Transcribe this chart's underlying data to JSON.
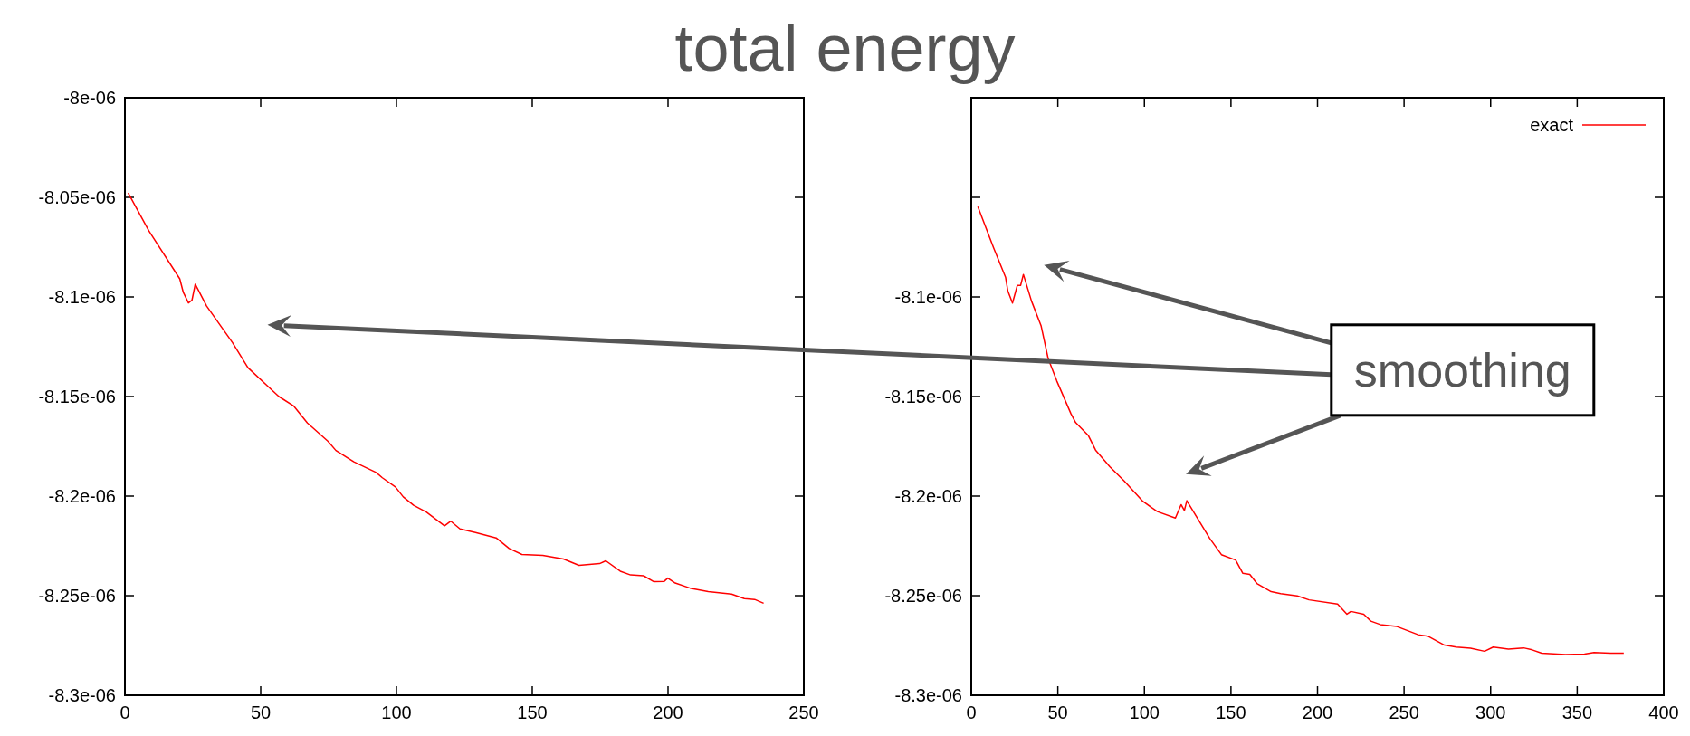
{
  "chart_data": [
    {
      "type": "line",
      "title": "total energy",
      "xlim": [
        0,
        250
      ],
      "xticks": [
        0,
        50,
        100,
        150,
        200,
        250
      ],
      "ylim": [
        -8.3e-06,
        -8e-06
      ],
      "yticks": [
        {
          "value": -8.3e-06,
          "label": "-8.3e-06"
        },
        {
          "value": -8.25e-06,
          "label": "-8.25e-06"
        },
        {
          "value": -8.2e-06,
          "label": "-8.2e-06"
        },
        {
          "value": -8.15e-06,
          "label": "-8.15e-06"
        },
        {
          "value": -8.1e-06,
          "label": "-8.1e-06"
        },
        {
          "value": -8.05e-06,
          "label": "-8.05e-06"
        },
        {
          "value": -8e-06,
          "label": "-8e-06"
        }
      ],
      "grid": false,
      "legend": false,
      "series": [
        {
          "color": "#ff0000",
          "x": [
            1.2,
            8.8,
            20.2,
            21.5,
            23.4,
            24.7,
            25.9,
            30.1,
            39.6,
            45.3,
            53.9,
            56.7,
            62.1,
            67.2,
            74.8,
            77.7,
            84.3,
            92.5,
            94.8,
            99.6,
            102.5,
            106.3,
            111,
            117.7,
            120,
            123.4,
            129.1,
            136.7,
            141.5,
            146.2,
            153.9,
            161.5,
            167.2,
            174.8,
            177.1,
            182.4,
            186.2,
            191,
            194.8,
            198.6,
            199.9,
            202.4,
            208.1,
            214.8,
            223.4,
            228.1,
            231.9,
            235.2
          ],
          "values": [
            -8.0478e-06,
            -8.0668e-06,
            -8.0909e-06,
            -8.0977e-06,
            -8.103e-06,
            -8.1016e-06,
            -8.0936e-06,
            -8.1046e-06,
            -8.1229e-06,
            -8.1355e-06,
            -8.1465e-06,
            -8.15e-06,
            -8.1547e-06,
            -8.1633e-06,
            -8.1725e-06,
            -8.1771e-06,
            -8.1828e-06,
            -8.1881e-06,
            -8.1908e-06,
            -8.1954e-06,
            -8.2004e-06,
            -8.2046e-06,
            -8.208e-06,
            -8.2149e-06,
            -8.2126e-06,
            -8.2165e-06,
            -8.2183e-06,
            -8.221e-06,
            -8.2263e-06,
            -8.2293e-06,
            -8.2298e-06,
            -8.2316e-06,
            -8.2348e-06,
            -8.2339e-06,
            -8.2325e-06,
            -8.2377e-06,
            -8.2396e-06,
            -8.24e-06,
            -8.243e-06,
            -8.2428e-06,
            -8.2412e-06,
            -8.2435e-06,
            -8.2462e-06,
            -8.248e-06,
            -8.2492e-06,
            -8.2515e-06,
            -8.2519e-06,
            -8.2538e-06
          ]
        }
      ]
    },
    {
      "type": "line",
      "annotations": [
        "smoothing"
      ],
      "xlim": [
        0,
        400
      ],
      "xticks": [
        0,
        50,
        100,
        150,
        200,
        250,
        300,
        350,
        400
      ],
      "ylim": [
        -8.3e-06,
        -8e-06
      ],
      "yticks": [
        {
          "value": -8.3e-06,
          "label": "-8.3e-06"
        },
        {
          "value": -8.25e-06,
          "label": "-8.25e-06"
        },
        {
          "value": -8.2e-06,
          "label": "-8.2e-06"
        },
        {
          "value": -8.15e-06,
          "label": "-8.15e-06"
        },
        {
          "value": -8.1e-06,
          "label": "-8.1e-06"
        },
        {
          "value": -8.05e-06,
          "label": null
        },
        {
          "value": -8e-06,
          "label": null
        }
      ],
      "grid": false,
      "legend": "top right",
      "series": [
        {
          "name": "exact",
          "color": "#ff0000",
          "x": [
            3.8,
            12.9,
            19.8,
            21.1,
            23.8,
            26.6,
            28.5,
            30.1,
            34.8,
            40.3,
            44.4,
            49.4,
            57.6,
            60.3,
            67.7,
            71.8,
            80,
            88.3,
            99.2,
            107.5,
            117.9,
            121.2,
            123.1,
            124.5,
            137.7,
            144.5,
            152.7,
            156.8,
            160.9,
            165,
            173.2,
            178.7,
            188.3,
            195.1,
            211.6,
            217,
            219.3,
            226.7,
            230.8,
            236.3,
            245.9,
            258.2,
            263.7,
            273.3,
            280.1,
            288.4,
            296.5,
            301.5,
            310.3,
            319,
            324,
            329.5,
            343.2,
            354.2,
            359.7,
            369.3,
            376.9
          ],
          "values": [
            -8.0547e-06,
            -8.0753e-06,
            -8.0901e-06,
            -8.0969e-06,
            -8.1031e-06,
            -8.0942e-06,
            -8.0942e-06,
            -8.0887e-06,
            -8.1021e-06,
            -8.1144e-06,
            -8.1309e-06,
            -8.1422e-06,
            -8.1587e-06,
            -8.1631e-06,
            -8.1697e-06,
            -8.1769e-06,
            -8.1852e-06,
            -8.1924e-06,
            -8.2027e-06,
            -8.2078e-06,
            -8.211e-06,
            -8.2043e-06,
            -8.2072e-06,
            -8.2023e-06,
            -8.2212e-06,
            -8.2294e-06,
            -8.2321e-06,
            -8.2387e-06,
            -8.2393e-06,
            -8.2439e-06,
            -8.248e-06,
            -8.249e-06,
            -8.2501e-06,
            -8.2521e-06,
            -8.2542e-06,
            -8.2593e-06,
            -8.2579e-06,
            -8.2593e-06,
            -8.2628e-06,
            -8.2645e-06,
            -8.2655e-06,
            -8.2696e-06,
            -8.2703e-06,
            -8.2748e-06,
            -8.2758e-06,
            -8.2764e-06,
            -8.2779e-06,
            -8.2758e-06,
            -8.2768e-06,
            -8.2762e-06,
            -8.2772e-06,
            -8.2789e-06,
            -8.2795e-06,
            -8.2793e-06,
            -8.2785e-06,
            -8.2789e-06,
            -8.2789e-06
          ]
        }
      ]
    }
  ]
}
